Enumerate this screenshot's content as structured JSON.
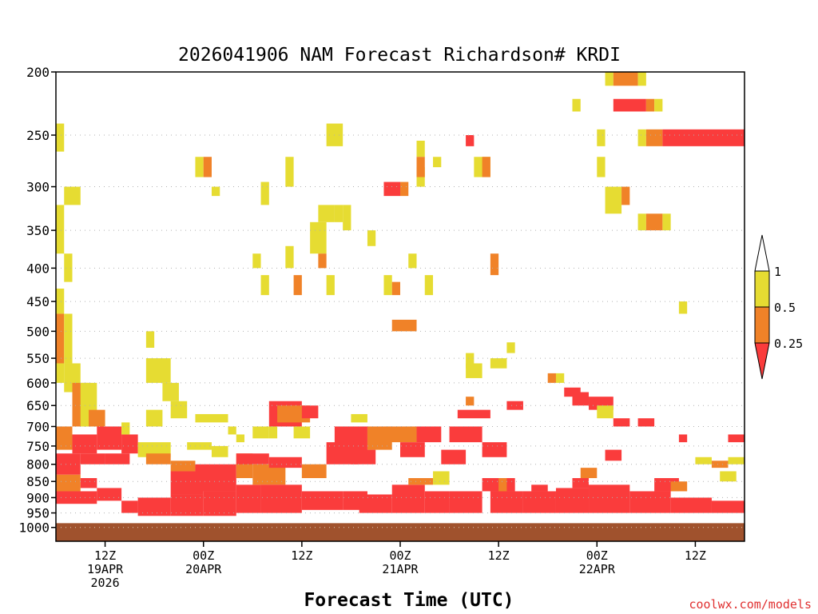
{
  "chart_data": {
    "type": "heatmap",
    "title": "2026041906 NAM Forecast Richardson# KRDI",
    "xlabel": "Forecast Time (UTC)",
    "ylabel": "",
    "credit": "coolwx.com/models",
    "x_unit": "forecast hour",
    "xlim": [
      0,
      84
    ],
    "ylim": [
      1050,
      200
    ],
    "y_scale": "log-pressure (mb)",
    "y_ticks": [
      "200",
      "250",
      "300",
      "350",
      "400",
      "450",
      "500",
      "550",
      "600",
      "650",
      "700",
      "750",
      "800",
      "850",
      "900",
      "950",
      "1000"
    ],
    "x_ticks": [
      {
        "hour": 6,
        "line1": "12Z",
        "line2": "19APR",
        "line3": "2026"
      },
      {
        "hour": 18,
        "line1": "00Z",
        "line2": "20APR",
        "line3": ""
      },
      {
        "hour": 30,
        "line1": "12Z",
        "line2": "",
        "line3": ""
      },
      {
        "hour": 42,
        "line1": "00Z",
        "line2": "21APR",
        "line3": ""
      },
      {
        "hour": 54,
        "line1": "12Z",
        "line2": "",
        "line3": ""
      },
      {
        "hour": 66,
        "line1": "00Z",
        "line2": "22APR",
        "line3": ""
      },
      {
        "hour": 78,
        "line1": "12Z",
        "line2": "",
        "line3": ""
      }
    ],
    "colorbar": {
      "levels": [
        "1",
        "0.5",
        "0.25"
      ],
      "bins": [
        {
          "range": "> 1",
          "color": "#ffffff"
        },
        {
          "range": "0.5-1",
          "color": "#e6dc32"
        },
        {
          "range": "0.25-0.5",
          "color": "#f08228"
        },
        {
          "range": "< 0.25",
          "color": "#fa3c3c"
        }
      ]
    },
    "ground_fill": {
      "p_top": 985,
      "p_bottom": 1050,
      "color": "#a0522d"
    },
    "cells": [
      {
        "t0": 0,
        "t1": 1,
        "p0": 470,
        "p1": 430,
        "v": "yellow"
      },
      {
        "t0": 0,
        "t1": 1,
        "p0": 560,
        "p1": 470,
        "v": "orange"
      },
      {
        "t0": 1,
        "t1": 2,
        "p0": 560,
        "p1": 470,
        "v": "yellow"
      },
      {
        "t0": 0,
        "t1": 1,
        "p0": 600,
        "p1": 560,
        "v": "yellow"
      },
      {
        "t0": 1,
        "t1": 3,
        "p0": 620,
        "p1": 560,
        "v": "yellow"
      },
      {
        "t0": 2,
        "t1": 4,
        "p0": 700,
        "p1": 600,
        "v": "orange"
      },
      {
        "t0": 3,
        "t1": 5,
        "p0": 700,
        "p1": 600,
        "v": "yellow"
      },
      {
        "t0": 4,
        "t1": 6,
        "p0": 700,
        "p1": 660,
        "v": "orange"
      },
      {
        "t0": 1,
        "t1": 3,
        "p0": 320,
        "p1": 300,
        "v": "yellow"
      },
      {
        "t0": 0,
        "t1": 1,
        "p0": 265,
        "p1": 240,
        "v": "yellow"
      },
      {
        "t0": 0,
        "t1": 1,
        "p0": 380,
        "p1": 320,
        "v": "yellow"
      },
      {
        "t0": 1,
        "t1": 2,
        "p0": 420,
        "p1": 380,
        "v": "yellow"
      },
      {
        "t0": 0,
        "t1": 2,
        "p0": 760,
        "p1": 700,
        "v": "orange"
      },
      {
        "t0": 2,
        "t1": 5,
        "p0": 770,
        "p1": 720,
        "v": "red"
      },
      {
        "t0": 5,
        "t1": 8,
        "p0": 760,
        "p1": 700,
        "v": "red"
      },
      {
        "t0": 8,
        "t1": 10,
        "p0": 770,
        "p1": 720,
        "v": "red"
      },
      {
        "t0": 8,
        "t1": 9,
        "p0": 720,
        "p1": 690,
        "v": "yellow"
      },
      {
        "t0": 0,
        "t1": 3,
        "p0": 830,
        "p1": 770,
        "v": "red"
      },
      {
        "t0": 3,
        "t1": 6,
        "p0": 800,
        "p1": 770,
        "v": "red"
      },
      {
        "t0": 6,
        "t1": 9,
        "p0": 800,
        "p1": 770,
        "v": "red"
      },
      {
        "t0": 0,
        "t1": 3,
        "p0": 880,
        "p1": 830,
        "v": "orange"
      },
      {
        "t0": 3,
        "t1": 5,
        "p0": 870,
        "p1": 840,
        "v": "red"
      },
      {
        "t0": 0,
        "t1": 5,
        "p0": 920,
        "p1": 880,
        "v": "red"
      },
      {
        "t0": 5,
        "t1": 8,
        "p0": 910,
        "p1": 870,
        "v": "red"
      },
      {
        "t0": 8,
        "t1": 10,
        "p0": 950,
        "p1": 910,
        "v": "red"
      },
      {
        "t0": 10,
        "t1": 14,
        "p0": 960,
        "p1": 900,
        "v": "red"
      },
      {
        "t0": 11,
        "t1": 13,
        "p0": 700,
        "p1": 660,
        "v": "yellow"
      },
      {
        "t0": 10,
        "t1": 14,
        "p0": 780,
        "p1": 740,
        "v": "yellow"
      },
      {
        "t0": 11,
        "t1": 14,
        "p0": 800,
        "p1": 770,
        "v": "orange"
      },
      {
        "t0": 11,
        "t1": 12,
        "p0": 530,
        "p1": 500,
        "v": "yellow"
      },
      {
        "t0": 11,
        "t1": 14,
        "p0": 600,
        "p1": 550,
        "v": "yellow"
      },
      {
        "t0": 13,
        "t1": 15,
        "p0": 640,
        "p1": 600,
        "v": "yellow"
      },
      {
        "t0": 14,
        "t1": 16,
        "p0": 680,
        "p1": 640,
        "v": "yellow"
      },
      {
        "t0": 14,
        "t1": 18,
        "p0": 890,
        "p1": 820,
        "v": "red"
      },
      {
        "t0": 14,
        "t1": 17,
        "p0": 820,
        "p1": 790,
        "v": "orange"
      },
      {
        "t0": 14,
        "t1": 18,
        "p0": 960,
        "p1": 890,
        "v": "red"
      },
      {
        "t0": 17,
        "t1": 22,
        "p0": 880,
        "p1": 800,
        "v": "red"
      },
      {
        "t0": 18,
        "t1": 22,
        "p0": 960,
        "p1": 880,
        "v": "red"
      },
      {
        "t0": 16,
        "t1": 19,
        "p0": 760,
        "p1": 740,
        "v": "yellow"
      },
      {
        "t0": 17,
        "t1": 21,
        "p0": 690,
        "p1": 670,
        "v": "yellow"
      },
      {
        "t0": 19,
        "t1": 21,
        "p0": 780,
        "p1": 750,
        "v": "yellow"
      },
      {
        "t0": 17,
        "t1": 18,
        "p0": 290,
        "p1": 270,
        "v": "yellow"
      },
      {
        "t0": 18,
        "t1": 19,
        "p0": 290,
        "p1": 270,
        "v": "orange"
      },
      {
        "t0": 19,
        "t1": 20,
        "p0": 310,
        "p1": 300,
        "v": "yellow"
      },
      {
        "t0": 21,
        "t1": 22,
        "p0": 720,
        "p1": 700,
        "v": "yellow"
      },
      {
        "t0": 22,
        "t1": 24,
        "p0": 840,
        "p1": 770,
        "v": "orange"
      },
      {
        "t0": 22,
        "t1": 25,
        "p0": 950,
        "p1": 860,
        "v": "red"
      },
      {
        "t0": 22,
        "t1": 26,
        "p0": 800,
        "p1": 770,
        "v": "red"
      },
      {
        "t0": 24,
        "t1": 28,
        "p0": 860,
        "p1": 800,
        "v": "orange"
      },
      {
        "t0": 25,
        "t1": 30,
        "p0": 950,
        "p1": 860,
        "v": "red"
      },
      {
        "t0": 26,
        "t1": 30,
        "p0": 810,
        "p1": 780,
        "v": "red"
      },
      {
        "t0": 22,
        "t1": 23,
        "p0": 740,
        "p1": 720,
        "v": "yellow"
      },
      {
        "t0": 24,
        "t1": 26,
        "p0": 730,
        "p1": 700,
        "v": "yellow"
      },
      {
        "t0": 25,
        "t1": 26,
        "p0": 320,
        "p1": 295,
        "v": "yellow"
      },
      {
        "t0": 24,
        "t1": 25,
        "p0": 400,
        "p1": 380,
        "v": "yellow"
      },
      {
        "t0": 25,
        "t1": 26,
        "p0": 440,
        "p1": 410,
        "v": "yellow"
      },
      {
        "t0": 26,
        "t1": 30,
        "p0": 700,
        "p1": 640,
        "v": "red"
      },
      {
        "t0": 27,
        "t1": 31,
        "p0": 690,
        "p1": 650,
        "v": "orange"
      },
      {
        "t0": 26,
        "t1": 27,
        "p0": 730,
        "p1": 700,
        "v": "yellow"
      },
      {
        "t0": 28,
        "t1": 29,
        "p0": 300,
        "p1": 270,
        "v": "yellow"
      },
      {
        "t0": 28,
        "t1": 29,
        "p0": 400,
        "p1": 370,
        "v": "yellow"
      },
      {
        "t0": 29,
        "t1": 30,
        "p0": 440,
        "p1": 410,
        "v": "orange"
      },
      {
        "t0": 30,
        "t1": 35,
        "p0": 940,
        "p1": 880,
        "v": "red"
      },
      {
        "t0": 30,
        "t1": 33,
        "p0": 840,
        "p1": 800,
        "v": "orange"
      },
      {
        "t0": 29,
        "t1": 31,
        "p0": 730,
        "p1": 700,
        "v": "yellow"
      },
      {
        "t0": 30,
        "t1": 32,
        "p0": 680,
        "p1": 650,
        "v": "red"
      },
      {
        "t0": 31,
        "t1": 33,
        "p0": 380,
        "p1": 340,
        "v": "yellow"
      },
      {
        "t0": 32,
        "t1": 33,
        "p0": 400,
        "p1": 380,
        "v": "orange"
      },
      {
        "t0": 32,
        "t1": 34,
        "p0": 340,
        "p1": 320,
        "v": "yellow"
      },
      {
        "t0": 33,
        "t1": 34,
        "p0": 440,
        "p1": 410,
        "v": "yellow"
      },
      {
        "t0": 33,
        "t1": 35,
        "p0": 260,
        "p1": 240,
        "v": "yellow"
      },
      {
        "t0": 34,
        "t1": 35,
        "p0": 340,
        "p1": 320,
        "v": "yellow"
      },
      {
        "t0": 35,
        "t1": 36,
        "p0": 350,
        "p1": 320,
        "v": "yellow"
      },
      {
        "t0": 33,
        "t1": 37,
        "p0": 800,
        "p1": 740,
        "v": "red"
      },
      {
        "t0": 34,
        "t1": 38,
        "p0": 780,
        "p1": 700,
        "v": "red"
      },
      {
        "t0": 35,
        "t1": 38,
        "p0": 940,
        "p1": 880,
        "v": "red"
      },
      {
        "t0": 36,
        "t1": 39,
        "p0": 800,
        "p1": 760,
        "v": "red"
      },
      {
        "t0": 38,
        "t1": 41,
        "p0": 760,
        "p1": 700,
        "v": "orange"
      },
      {
        "t0": 37,
        "t1": 41,
        "p0": 950,
        "p1": 890,
        "v": "red"
      },
      {
        "t0": 36,
        "t1": 38,
        "p0": 690,
        "p1": 670,
        "v": "yellow"
      },
      {
        "t0": 38,
        "t1": 39,
        "p0": 370,
        "p1": 350,
        "v": "yellow"
      },
      {
        "t0": 40,
        "t1": 42,
        "p0": 310,
        "p1": 295,
        "v": "red"
      },
      {
        "t0": 42,
        "t1": 43,
        "p0": 310,
        "p1": 295,
        "v": "orange"
      },
      {
        "t0": 41,
        "t1": 44,
        "p0": 500,
        "p1": 480,
        "v": "orange"
      },
      {
        "t0": 40,
        "t1": 41,
        "p0": 440,
        "p1": 410,
        "v": "yellow"
      },
      {
        "t0": 41,
        "t1": 42,
        "p0": 440,
        "p1": 420,
        "v": "orange"
      },
      {
        "t0": 40,
        "t1": 44,
        "p0": 740,
        "p1": 700,
        "v": "orange"
      },
      {
        "t0": 41,
        "t1": 45,
        "p0": 950,
        "p1": 860,
        "v": "red"
      },
      {
        "t0": 42,
        "t1": 45,
        "p0": 780,
        "p1": 740,
        "v": "red"
      },
      {
        "t0": 44,
        "t1": 47,
        "p0": 740,
        "p1": 700,
        "v": "red"
      },
      {
        "t0": 45,
        "t1": 48,
        "p0": 950,
        "p1": 880,
        "v": "red"
      },
      {
        "t0": 43,
        "t1": 46,
        "p0": 860,
        "p1": 840,
        "v": "orange"
      },
      {
        "t0": 44,
        "t1": 45,
        "p0": 300,
        "p1": 280,
        "v": "yellow"
      },
      {
        "t0": 44,
        "t1": 45,
        "p0": 270,
        "p1": 255,
        "v": "yellow"
      },
      {
        "t0": 44,
        "t1": 45,
        "p0": 290,
        "p1": 270,
        "v": "orange"
      },
      {
        "t0": 43,
        "t1": 44,
        "p0": 400,
        "p1": 380,
        "v": "yellow"
      },
      {
        "t0": 45,
        "t1": 46,
        "p0": 440,
        "p1": 410,
        "v": "yellow"
      },
      {
        "t0": 46,
        "t1": 47,
        "p0": 280,
        "p1": 270,
        "v": "yellow"
      },
      {
        "t0": 47,
        "t1": 50,
        "p0": 800,
        "p1": 760,
        "v": "red"
      },
      {
        "t0": 48,
        "t1": 52,
        "p0": 740,
        "p1": 700,
        "v": "red"
      },
      {
        "t0": 48,
        "t1": 52,
        "p0": 950,
        "p1": 880,
        "v": "red"
      },
      {
        "t0": 49,
        "t1": 53,
        "p0": 680,
        "p1": 660,
        "v": "red"
      },
      {
        "t0": 46,
        "t1": 48,
        "p0": 860,
        "p1": 820,
        "v": "yellow"
      },
      {
        "t0": 50,
        "t1": 51,
        "p0": 570,
        "p1": 540,
        "v": "yellow"
      },
      {
        "t0": 50,
        "t1": 52,
        "p0": 590,
        "p1": 560,
        "v": "yellow"
      },
      {
        "t0": 50,
        "t1": 51,
        "p0": 260,
        "p1": 250,
        "v": "red"
      },
      {
        "t0": 50,
        "t1": 51,
        "p0": 650,
        "p1": 630,
        "v": "orange"
      },
      {
        "t0": 51,
        "t1": 53,
        "p0": 290,
        "p1": 270,
        "v": "yellow"
      },
      {
        "t0": 52,
        "t1": 53,
        "p0": 290,
        "p1": 270,
        "v": "orange"
      },
      {
        "t0": 52,
        "t1": 55,
        "p0": 780,
        "p1": 740,
        "v": "red"
      },
      {
        "t0": 52,
        "t1": 56,
        "p0": 880,
        "p1": 840,
        "v": "red"
      },
      {
        "t0": 53,
        "t1": 57,
        "p0": 950,
        "p1": 880,
        "v": "red"
      },
      {
        "t0": 54,
        "t1": 55,
        "p0": 880,
        "p1": 840,
        "v": "orange"
      },
      {
        "t0": 53,
        "t1": 54,
        "p0": 410,
        "p1": 380,
        "v": "orange"
      },
      {
        "t0": 53,
        "t1": 55,
        "p0": 570,
        "p1": 550,
        "v": "yellow"
      },
      {
        "t0": 55,
        "t1": 57,
        "p0": 660,
        "p1": 640,
        "v": "red"
      },
      {
        "t0": 55,
        "t1": 56,
        "p0": 540,
        "p1": 520,
        "v": "yellow"
      },
      {
        "t0": 57,
        "t1": 61,
        "p0": 950,
        "p1": 880,
        "v": "red"
      },
      {
        "t0": 58,
        "t1": 60,
        "p0": 880,
        "p1": 860,
        "v": "red"
      },
      {
        "t0": 60,
        "t1": 61,
        "p0": 600,
        "p1": 580,
        "v": "orange"
      },
      {
        "t0": 61,
        "t1": 62,
        "p0": 600,
        "p1": 580,
        "v": "yellow"
      },
      {
        "t0": 61,
        "t1": 65,
        "p0": 950,
        "p1": 870,
        "v": "red"
      },
      {
        "t0": 62,
        "t1": 64,
        "p0": 630,
        "p1": 610,
        "v": "red"
      },
      {
        "t0": 63,
        "t1": 65,
        "p0": 870,
        "p1": 840,
        "v": "red"
      },
      {
        "t0": 63,
        "t1": 65,
        "p0": 650,
        "p1": 620,
        "v": "red"
      },
      {
        "t0": 65,
        "t1": 68,
        "p0": 660,
        "p1": 630,
        "v": "red"
      },
      {
        "t0": 64,
        "t1": 66,
        "p0": 840,
        "p1": 810,
        "v": "orange"
      },
      {
        "t0": 65,
        "t1": 70,
        "p0": 950,
        "p1": 860,
        "v": "red"
      },
      {
        "t0": 66,
        "t1": 68,
        "p0": 680,
        "p1": 650,
        "v": "yellow"
      },
      {
        "t0": 67,
        "t1": 69,
        "p0": 790,
        "p1": 760,
        "v": "red"
      },
      {
        "t0": 67,
        "t1": 69,
        "p0": 330,
        "p1": 300,
        "v": "yellow"
      },
      {
        "t0": 69,
        "t1": 70,
        "p0": 320,
        "p1": 300,
        "v": "orange"
      },
      {
        "t0": 68,
        "t1": 70,
        "p0": 700,
        "p1": 680,
        "v": "red"
      },
      {
        "t0": 66,
        "t1": 67,
        "p0": 290,
        "p1": 270,
        "v": "yellow"
      },
      {
        "t0": 67,
        "t1": 68,
        "p0": 210,
        "p1": 200,
        "v": "yellow"
      },
      {
        "t0": 68,
        "t1": 71,
        "p0": 210,
        "p1": 200,
        "v": "orange"
      },
      {
        "t0": 68,
        "t1": 72,
        "p0": 230,
        "p1": 220,
        "v": "red"
      },
      {
        "t0": 72,
        "t1": 73,
        "p0": 230,
        "p1": 220,
        "v": "orange"
      },
      {
        "t0": 73,
        "t1": 74,
        "p0": 230,
        "p1": 220,
        "v": "yellow"
      },
      {
        "t0": 71,
        "t1": 72,
        "p0": 210,
        "p1": 200,
        "v": "yellow"
      },
      {
        "t0": 63,
        "t1": 64,
        "p0": 230,
        "p1": 220,
        "v": "yellow"
      },
      {
        "t0": 66,
        "t1": 67,
        "p0": 260,
        "p1": 245,
        "v": "yellow"
      },
      {
        "t0": 71,
        "t1": 72,
        "p0": 260,
        "p1": 245,
        "v": "yellow"
      },
      {
        "t0": 72,
        "t1": 74,
        "p0": 260,
        "p1": 245,
        "v": "orange"
      },
      {
        "t0": 74,
        "t1": 84,
        "p0": 260,
        "p1": 245,
        "v": "red"
      },
      {
        "t0": 71,
        "t1": 72,
        "p0": 350,
        "p1": 330,
        "v": "yellow"
      },
      {
        "t0": 72,
        "t1": 74,
        "p0": 350,
        "p1": 330,
        "v": "orange"
      },
      {
        "t0": 74,
        "t1": 75,
        "p0": 350,
        "p1": 330,
        "v": "yellow"
      },
      {
        "t0": 76,
        "t1": 77,
        "p0": 470,
        "p1": 450,
        "v": "yellow"
      },
      {
        "t0": 70,
        "t1": 75,
        "p0": 950,
        "p1": 880,
        "v": "red"
      },
      {
        "t0": 71,
        "t1": 73,
        "p0": 700,
        "p1": 680,
        "v": "red"
      },
      {
        "t0": 73,
        "t1": 76,
        "p0": 880,
        "p1": 840,
        "v": "red"
      },
      {
        "t0": 75,
        "t1": 77,
        "p0": 880,
        "p1": 850,
        "v": "orange"
      },
      {
        "t0": 75,
        "t1": 80,
        "p0": 950,
        "p1": 900,
        "v": "red"
      },
      {
        "t0": 80,
        "t1": 84,
        "p0": 950,
        "p1": 910,
        "v": "red"
      },
      {
        "t0": 81,
        "t1": 83,
        "p0": 850,
        "p1": 820,
        "v": "yellow"
      },
      {
        "t0": 82,
        "t1": 84,
        "p0": 740,
        "p1": 720,
        "v": "red"
      },
      {
        "t0": 76,
        "t1": 77,
        "p0": 740,
        "p1": 720,
        "v": "red"
      },
      {
        "t0": 78,
        "t1": 80,
        "p0": 800,
        "p1": 780,
        "v": "yellow"
      },
      {
        "t0": 80,
        "t1": 82,
        "p0": 810,
        "p1": 790,
        "v": "orange"
      },
      {
        "t0": 82,
        "t1": 84,
        "p0": 800,
        "p1": 780,
        "v": "yellow"
      }
    ]
  }
}
